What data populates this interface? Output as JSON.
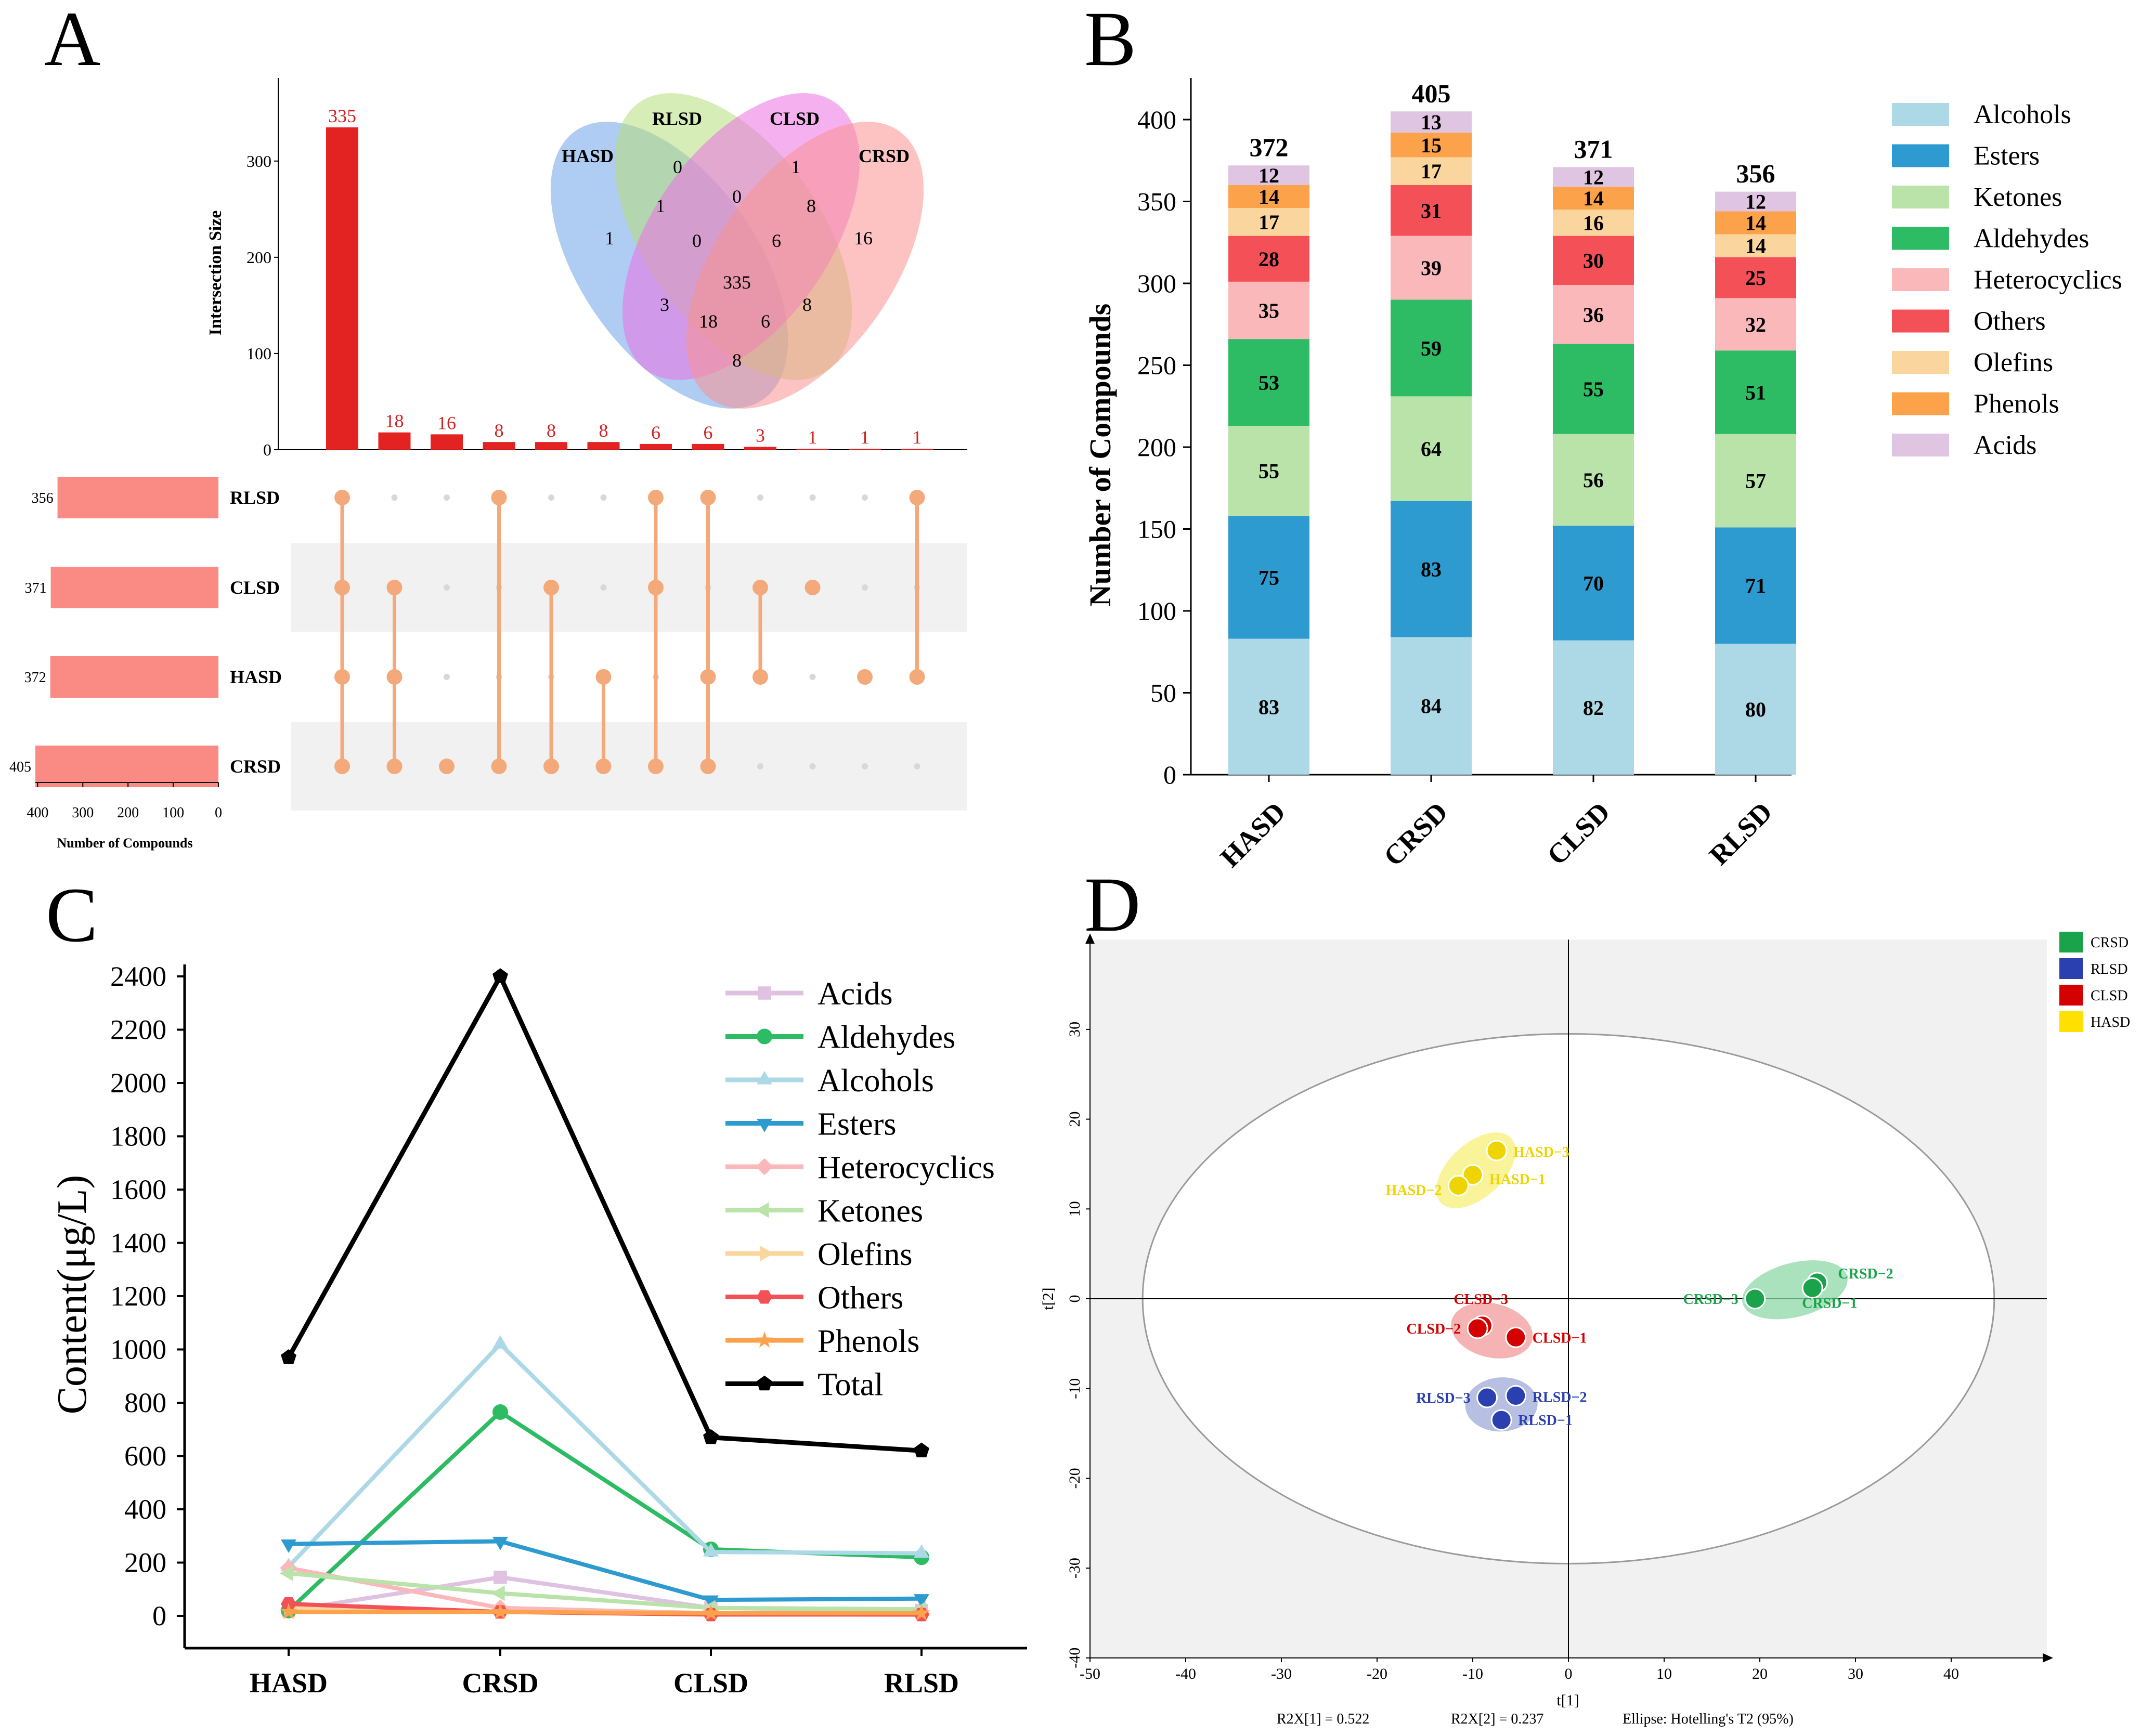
{
  "chart_data": [
    {
      "panel": "A",
      "type": "bar",
      "subtype": "upset",
      "panel_label": "A",
      "ylabel": "Intersection Size",
      "y_ticks": [
        0,
        100,
        200,
        300
      ],
      "ylim": [
        0,
        370
      ],
      "values": [
        335,
        18,
        16,
        8,
        8,
        8,
        6,
        6,
        3,
        1,
        1,
        1
      ],
      "sets": [
        "RLSD",
        "CLSD",
        "HASD",
        "CRSD"
      ],
      "set_sizes": [
        356,
        371,
        372,
        405
      ],
      "set_size_ticks": [
        "400",
        "300",
        "200",
        "100",
        "0"
      ],
      "set_size_xlabel": "Number of Compounds",
      "combinations": [
        [
          "RLSD",
          "CLSD",
          "HASD",
          "CRSD"
        ],
        [
          "CLSD",
          "HASD",
          "CRSD"
        ],
        [
          "CRSD"
        ],
        [
          "RLSD",
          "CRSD"
        ],
        [
          "CLSD",
          "CRSD"
        ],
        [
          "HASD",
          "CRSD"
        ],
        [
          "RLSD",
          "CLSD",
          "CRSD"
        ],
        [
          "RLSD",
          "HASD",
          "CRSD"
        ],
        [
          "CLSD",
          "HASD"
        ],
        [
          "CLSD"
        ],
        [
          "HASD"
        ],
        [
          "RLSD",
          "HASD"
        ]
      ],
      "venn": {
        "labels": [
          "HASD",
          "RLSD",
          "CLSD",
          "CRSD"
        ],
        "regions": {
          "HASD_only": "1",
          "RLSD_only": "0",
          "CLSD_only": "1",
          "CRSD_only": "16",
          "HASD_RLSD": "1",
          "RLSD_CLSD": "0",
          "CLSD_CRSD": "8",
          "HASD_CLSD": "3",
          "RLSD_CRSD": "8",
          "HASD_CRSD": "8",
          "HASD_RLSD_CLSD": "0",
          "RLSD_CLSD_CRSD": "6",
          "HASD_CLSD_CRSD": "18",
          "HASD_RLSD_CRSD": "6",
          "all": "335"
        }
      }
    },
    {
      "panel": "B",
      "type": "bar",
      "subtype": "stacked",
      "panel_label": "B",
      "ylabel": "Number of Compounds",
      "ylim": [
        0,
        420
      ],
      "y_ticks": [
        0,
        50,
        100,
        150,
        200,
        250,
        300,
        350,
        400
      ],
      "categories": [
        "HASD",
        "CRSD",
        "CLSD",
        "RLSD"
      ],
      "totals": [
        372,
        405,
        371,
        356
      ],
      "series": [
        {
          "name": "Alcohols",
          "color": "#add8e6",
          "values": [
            83,
            84,
            82,
            80
          ]
        },
        {
          "name": "Esters",
          "color": "#2e9bd0",
          "values": [
            75,
            83,
            70,
            71
          ]
        },
        {
          "name": "Ketones",
          "color": "#b9e3a9",
          "values": [
            55,
            64,
            56,
            57
          ]
        },
        {
          "name": "Aldehydes",
          "color": "#2dbb63",
          "values": [
            53,
            59,
            55,
            51
          ]
        },
        {
          "name": "Heterocyclics",
          "color": "#fbb8ba",
          "values": [
            35,
            39,
            36,
            32
          ]
        },
        {
          "name": "Others",
          "color": "#f45057",
          "values": [
            28,
            31,
            30,
            25
          ]
        },
        {
          "name": "Olefins",
          "color": "#fbd59e",
          "values": [
            17,
            17,
            16,
            14
          ]
        },
        {
          "name": "Phenols",
          "color": "#fba24b",
          "values": [
            14,
            15,
            14,
            14
          ]
        },
        {
          "name": "Acids",
          "color": "#dfc5e2",
          "values": [
            12,
            13,
            12,
            12
          ]
        }
      ]
    },
    {
      "panel": "C",
      "type": "line",
      "panel_label": "C",
      "ylabel": "Content(μg/L)",
      "ylim": [
        -50,
        2450
      ],
      "y_ticks": [
        0,
        200,
        400,
        600,
        800,
        1000,
        1200,
        1400,
        1600,
        1800,
        2000,
        2200,
        2400
      ],
      "categories": [
        "HASD",
        "CRSD",
        "CLSD",
        "RLSD"
      ],
      "series": [
        {
          "name": "Acids",
          "color": "#dfc1e2",
          "marker": "square",
          "values": [
            20,
            145,
            30,
            20
          ]
        },
        {
          "name": "Aldehydes",
          "color": "#2dbb63",
          "marker": "circle",
          "values": [
            20,
            765,
            250,
            220
          ]
        },
        {
          "name": "Alcohols",
          "color": "#add8e6",
          "marker": "triangle-up",
          "values": [
            185,
            1020,
            240,
            235
          ]
        },
        {
          "name": "Esters",
          "color": "#2e9bd0",
          "marker": "triangle-down",
          "values": [
            270,
            280,
            60,
            65
          ]
        },
        {
          "name": "Heterocyclics",
          "color": "#fbb8ba",
          "marker": "diamond",
          "values": [
            180,
            30,
            10,
            10
          ]
        },
        {
          "name": "Ketones",
          "color": "#b9e3a9",
          "marker": "triangle-left",
          "values": [
            160,
            85,
            30,
            25
          ]
        },
        {
          "name": "Olefins",
          "color": "#fbd59e",
          "marker": "triangle-right",
          "values": [
            30,
            15,
            10,
            10
          ]
        },
        {
          "name": "Others",
          "color": "#f45057",
          "marker": "hexagon",
          "values": [
            45,
            15,
            5,
            5
          ]
        },
        {
          "name": "Phenols",
          "color": "#fba24b",
          "marker": "star",
          "values": [
            15,
            15,
            10,
            10
          ]
        },
        {
          "name": "Total",
          "color": "#000000",
          "marker": "pentagon",
          "values": [
            970,
            2400,
            670,
            620
          ]
        }
      ]
    },
    {
      "panel": "D",
      "type": "scatter",
      "panel_label": "D",
      "xlabel": "t[1]",
      "ylabel": "t[2]",
      "xlim": [
        -50,
        50
      ],
      "ylim": [
        -40,
        40
      ],
      "x_ticks": [
        -50,
        -40,
        -30,
        -20,
        -10,
        0,
        10,
        20,
        30,
        40
      ],
      "y_ticks": [
        -40,
        -30,
        -20,
        -10,
        0,
        10,
        20,
        30
      ],
      "ellipse": {
        "semi_x": 44.5,
        "semi_y": 29.5
      },
      "footer": [
        "R2X[1] = 0.522",
        "R2X[2] = 0.237",
        "Ellipse: Hotelling's T2 (95%)"
      ],
      "legend": [
        {
          "name": "CRSD",
          "color": "#1aa34a"
        },
        {
          "name": "RLSD",
          "color": "#2a3fb0"
        },
        {
          "name": "CLSD",
          "color": "#d40000"
        },
        {
          "name": "HASD",
          "color": "#ffe000"
        }
      ],
      "groups": [
        {
          "name": "HASD",
          "color": "#eed400",
          "hull": "#f7ef78",
          "points": [
            {
              "label": "HASD−3",
              "x": -7.5,
              "y": 16.5
            },
            {
              "label": "HASD−1",
              "x": -10.0,
              "y": 13.8
            },
            {
              "label": "HASD−2",
              "x": -11.5,
              "y": 12.6
            }
          ]
        },
        {
          "name": "CRSD",
          "color": "#1aa34a",
          "hull": "#8ed8a8",
          "points": [
            {
              "label": "CRSD−2",
              "x": 26.0,
              "y": 1.8
            },
            {
              "label": "CRSD−1",
              "x": 25.5,
              "y": 1.2
            },
            {
              "label": "CRSD−3",
              "x": 19.5,
              "y": 0.0
            }
          ]
        },
        {
          "name": "CLSD",
          "color": "#d40000",
          "hull": "#f29a9a",
          "points": [
            {
              "label": "CLSD−3",
              "x": -9.0,
              "y": -3.0
            },
            {
              "label": "CLSD−2",
              "x": -9.5,
              "y": -3.3
            },
            {
              "label": "CLSD−1",
              "x": -5.5,
              "y": -4.3
            }
          ]
        },
        {
          "name": "RLSD",
          "color": "#2a3fb0",
          "hull": "#9fa9d8",
          "points": [
            {
              "label": "RLSD−3",
              "x": -8.5,
              "y": -11.0
            },
            {
              "label": "RLSD−2",
              "x": -5.5,
              "y": -10.8
            },
            {
              "label": "RLSD−1",
              "x": -7.0,
              "y": -13.5
            }
          ]
        }
      ]
    }
  ]
}
